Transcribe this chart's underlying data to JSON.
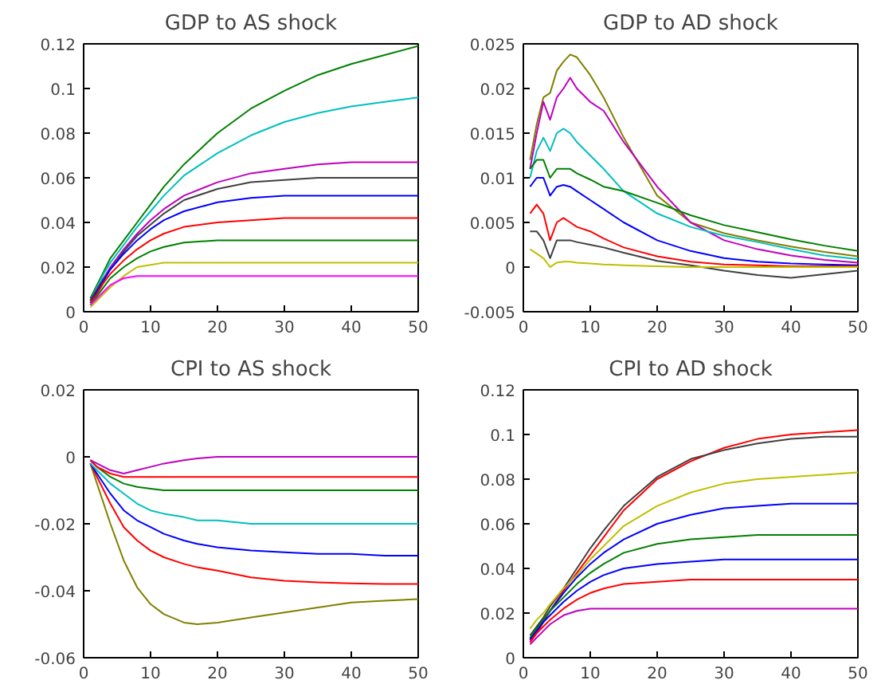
{
  "chart_data": [
    {
      "type": "line",
      "title": "GDP to AS shock",
      "xlim": [
        0,
        50
      ],
      "xticks": [
        0,
        10,
        20,
        30,
        40,
        50
      ],
      "ylim": [
        0,
        0.12
      ],
      "yticks": [
        0,
        0.02,
        0.04,
        0.06,
        0.08,
        0.1,
        0.12
      ],
      "grid": false,
      "marker": "none",
      "line_style": "solid",
      "x": [
        1,
        2,
        3,
        4,
        6,
        8,
        10,
        12,
        15,
        20,
        25,
        30,
        35,
        40,
        45,
        50
      ],
      "series": [
        {
          "color": "#008000",
          "values": [
            0.006,
            0.012,
            0.018,
            0.024,
            0.032,
            0.04,
            0.048,
            0.056,
            0.066,
            0.08,
            0.091,
            0.099,
            0.106,
            0.111,
            0.115,
            0.119
          ]
        },
        {
          "color": "#00bfbf",
          "values": [
            0.005,
            0.011,
            0.017,
            0.022,
            0.03,
            0.038,
            0.045,
            0.052,
            0.061,
            0.071,
            0.079,
            0.085,
            0.089,
            0.092,
            0.094,
            0.096
          ]
        },
        {
          "color": "#bf00bf",
          "values": [
            0.005,
            0.01,
            0.015,
            0.02,
            0.028,
            0.035,
            0.041,
            0.046,
            0.052,
            0.058,
            0.062,
            0.064,
            0.066,
            0.067,
            0.067,
            0.067
          ]
        },
        {
          "color": "#404040",
          "values": [
            0.005,
            0.01,
            0.015,
            0.019,
            0.027,
            0.034,
            0.039,
            0.044,
            0.05,
            0.055,
            0.058,
            0.059,
            0.06,
            0.06,
            0.06,
            0.06
          ]
        },
        {
          "color": "#0000ff",
          "values": [
            0.004,
            0.009,
            0.014,
            0.019,
            0.026,
            0.032,
            0.037,
            0.041,
            0.045,
            0.049,
            0.051,
            0.052,
            0.052,
            0.052,
            0.052,
            0.052
          ]
        },
        {
          "color": "#ff0000",
          "values": [
            0.004,
            0.008,
            0.013,
            0.017,
            0.023,
            0.028,
            0.032,
            0.035,
            0.038,
            0.04,
            0.041,
            0.042,
            0.042,
            0.042,
            0.042,
            0.042
          ]
        },
        {
          "color": "#008000",
          "values": [
            0.003,
            0.007,
            0.011,
            0.015,
            0.02,
            0.024,
            0.027,
            0.029,
            0.031,
            0.032,
            0.032,
            0.032,
            0.032,
            0.032,
            0.032,
            0.032
          ]
        },
        {
          "color": "#bfbf00",
          "values": [
            0.002,
            0.005,
            0.008,
            0.011,
            0.016,
            0.02,
            0.021,
            0.022,
            0.022,
            0.022,
            0.022,
            0.022,
            0.022,
            0.022,
            0.022,
            0.022
          ]
        },
        {
          "color": "#ff00ff",
          "values": [
            0.003,
            0.006,
            0.009,
            0.012,
            0.015,
            0.016,
            0.016,
            0.016,
            0.016,
            0.016,
            0.016,
            0.016,
            0.016,
            0.016,
            0.016,
            0.016
          ]
        }
      ]
    },
    {
      "type": "line",
      "title": "GDP to AD shock",
      "xlim": [
        0,
        50
      ],
      "xticks": [
        0,
        10,
        20,
        30,
        40,
        50
      ],
      "ylim": [
        -0.005,
        0.025
      ],
      "yticks": [
        -0.005,
        0,
        0.005,
        0.01,
        0.015,
        0.02,
        0.025
      ],
      "grid": false,
      "marker": "none",
      "line_style": "solid",
      "x": [
        1,
        2,
        3,
        4,
        5,
        6,
        7,
        8,
        10,
        12,
        15,
        20,
        25,
        30,
        35,
        40,
        45,
        50
      ],
      "series": [
        {
          "color": "#808000",
          "values": [
            0.012,
            0.016,
            0.019,
            0.0195,
            0.022,
            0.023,
            0.0238,
            0.0235,
            0.0215,
            0.019,
            0.0145,
            0.008,
            0.005,
            0.0038,
            0.003,
            0.0023,
            0.0017,
            0.0012
          ]
        },
        {
          "color": "#bf00bf",
          "values": [
            0.011,
            0.015,
            0.0185,
            0.0165,
            0.019,
            0.02,
            0.0212,
            0.02,
            0.0185,
            0.0175,
            0.014,
            0.009,
            0.005,
            0.003,
            0.002,
            0.0013,
            0.0008,
            0.0005
          ]
        },
        {
          "color": "#00bfbf",
          "values": [
            0.01,
            0.013,
            0.0145,
            0.013,
            0.015,
            0.0155,
            0.015,
            0.014,
            0.0125,
            0.011,
            0.0085,
            0.006,
            0.0045,
            0.0035,
            0.0028,
            0.002,
            0.0013,
            0.0009
          ]
        },
        {
          "color": "#008000",
          "values": [
            0.011,
            0.012,
            0.012,
            0.01,
            0.011,
            0.011,
            0.011,
            0.0105,
            0.0098,
            0.009,
            0.0085,
            0.0072,
            0.0058,
            0.0047,
            0.0039,
            0.0031,
            0.0024,
            0.0018
          ]
        },
        {
          "color": "#0000ff",
          "values": [
            0.009,
            0.01,
            0.01,
            0.008,
            0.009,
            0.0092,
            0.009,
            0.0085,
            0.0075,
            0.0065,
            0.005,
            0.003,
            0.0018,
            0.001,
            0.0006,
            0.0004,
            0.0003,
            0.0002
          ]
        },
        {
          "color": "#ff0000",
          "values": [
            0.006,
            0.007,
            0.006,
            0.003,
            0.005,
            0.0055,
            0.005,
            0.0045,
            0.004,
            0.0032,
            0.0022,
            0.0012,
            0.0006,
            0.0003,
            0.0002,
            0.0001,
            0.0001,
            0.0001
          ]
        },
        {
          "color": "#404040",
          "values": [
            0.004,
            0.004,
            0.003,
            0.001,
            0.003,
            0.003,
            0.003,
            0.0028,
            0.0025,
            0.0022,
            0.0016,
            0.0007,
            0.0002,
            -0.0004,
            -0.0009,
            -0.0012,
            -0.0008,
            -0.0004
          ]
        },
        {
          "color": "#bfbf00",
          "values": [
            0.002,
            0.0015,
            0.001,
            0.0,
            0.0005,
            0.0006,
            0.0006,
            0.0005,
            0.0004,
            0.0003,
            0.0002,
            0.0001,
            0.0,
            0.0,
            0.0,
            0.0,
            0.0,
            0.0
          ]
        }
      ]
    },
    {
      "type": "line",
      "title": "CPI to AS shock",
      "xlim": [
        0,
        50
      ],
      "xticks": [
        0,
        10,
        20,
        30,
        40,
        50
      ],
      "ylim": [
        -0.06,
        0.02
      ],
      "yticks": [
        -0.06,
        -0.04,
        -0.02,
        0,
        0.02
      ],
      "grid": false,
      "marker": "none",
      "line_style": "solid",
      "x": [
        1,
        2,
        4,
        6,
        8,
        10,
        12,
        15,
        17,
        20,
        25,
        30,
        35,
        40,
        45,
        50
      ],
      "series": [
        {
          "color": "#808000",
          "values": [
            -0.002,
            -0.008,
            -0.02,
            -0.031,
            -0.039,
            -0.044,
            -0.047,
            -0.0495,
            -0.05,
            -0.0495,
            -0.048,
            -0.0465,
            -0.045,
            -0.0435,
            -0.043,
            -0.0425
          ]
        },
        {
          "color": "#ff0000",
          "values": [
            -0.002,
            -0.006,
            -0.014,
            -0.021,
            -0.025,
            -0.028,
            -0.03,
            -0.032,
            -0.033,
            -0.034,
            -0.036,
            -0.037,
            -0.0375,
            -0.0378,
            -0.038,
            -0.038
          ]
        },
        {
          "color": "#0000ff",
          "values": [
            -0.002,
            -0.005,
            -0.011,
            -0.016,
            -0.019,
            -0.021,
            -0.023,
            -0.025,
            -0.026,
            -0.027,
            -0.028,
            -0.0285,
            -0.029,
            -0.029,
            -0.0295,
            -0.0295
          ]
        },
        {
          "color": "#00bfbf",
          "values": [
            -0.002,
            -0.004,
            -0.008,
            -0.011,
            -0.014,
            -0.016,
            -0.017,
            -0.018,
            -0.019,
            -0.019,
            -0.02,
            -0.02,
            -0.02,
            -0.02,
            -0.02,
            -0.02
          ]
        },
        {
          "color": "#008000",
          "values": [
            -0.001,
            -0.003,
            -0.006,
            -0.008,
            -0.009,
            -0.0095,
            -0.01,
            -0.01,
            -0.01,
            -0.01,
            -0.01,
            -0.01,
            -0.01,
            -0.01,
            -0.01,
            -0.01
          ]
        },
        {
          "color": "#ff0000",
          "values": [
            -0.001,
            -0.003,
            -0.005,
            -0.006,
            -0.006,
            -0.006,
            -0.006,
            -0.006,
            -0.006,
            -0.006,
            -0.006,
            -0.006,
            -0.006,
            -0.006,
            -0.006,
            -0.006
          ]
        },
        {
          "color": "#bf00bf",
          "values": [
            -0.001,
            -0.002,
            -0.004,
            -0.005,
            -0.004,
            -0.003,
            -0.002,
            -0.001,
            -0.0005,
            0.0,
            0.0,
            0.0,
            0.0,
            0.0,
            0.0,
            0.0
          ]
        }
      ]
    },
    {
      "type": "line",
      "title": "CPI to AD shock",
      "xlim": [
        0,
        50
      ],
      "xticks": [
        0,
        10,
        20,
        30,
        40,
        50
      ],
      "ylim": [
        0,
        0.12
      ],
      "yticks": [
        0,
        0.02,
        0.04,
        0.06,
        0.08,
        0.1,
        0.12
      ],
      "grid": false,
      "marker": "none",
      "line_style": "solid",
      "x": [
        1,
        2,
        3,
        4,
        6,
        8,
        10,
        12,
        15,
        20,
        25,
        30,
        35,
        40,
        45,
        50
      ],
      "series": [
        {
          "color": "#ff0000",
          "values": [
            0.007,
            0.011,
            0.016,
            0.021,
            0.03,
            0.038,
            0.046,
            0.054,
            0.066,
            0.08,
            0.088,
            0.094,
            0.098,
            0.1,
            0.101,
            0.102
          ]
        },
        {
          "color": "#404040",
          "values": [
            0.01,
            0.014,
            0.018,
            0.023,
            0.031,
            0.04,
            0.049,
            0.057,
            0.068,
            0.081,
            0.089,
            0.093,
            0.096,
            0.098,
            0.099,
            0.099
          ]
        },
        {
          "color": "#bfbf00",
          "values": [
            0.013,
            0.017,
            0.02,
            0.024,
            0.031,
            0.037,
            0.044,
            0.05,
            0.059,
            0.068,
            0.074,
            0.078,
            0.08,
            0.081,
            0.082,
            0.083
          ]
        },
        {
          "color": "#0000ff",
          "values": [
            0.0085,
            0.013,
            0.017,
            0.021,
            0.029,
            0.036,
            0.042,
            0.047,
            0.053,
            0.06,
            0.064,
            0.067,
            0.068,
            0.069,
            0.069,
            0.069
          ]
        },
        {
          "color": "#008000",
          "values": [
            0.009,
            0.013,
            0.017,
            0.021,
            0.027,
            0.033,
            0.038,
            0.042,
            0.047,
            0.051,
            0.053,
            0.054,
            0.055,
            0.055,
            0.055,
            0.055
          ]
        },
        {
          "color": "#0000ff",
          "values": [
            0.008,
            0.012,
            0.016,
            0.019,
            0.025,
            0.03,
            0.034,
            0.037,
            0.04,
            0.042,
            0.043,
            0.044,
            0.044,
            0.044,
            0.044,
            0.044
          ]
        },
        {
          "color": "#ff0000",
          "values": [
            0.007,
            0.011,
            0.014,
            0.017,
            0.022,
            0.026,
            0.029,
            0.031,
            0.033,
            0.034,
            0.035,
            0.035,
            0.035,
            0.035,
            0.035,
            0.035
          ]
        },
        {
          "color": "#bf00bf",
          "values": [
            0.006,
            0.009,
            0.012,
            0.015,
            0.019,
            0.021,
            0.022,
            0.022,
            0.022,
            0.022,
            0.022,
            0.022,
            0.022,
            0.022,
            0.022,
            0.022
          ]
        }
      ]
    }
  ]
}
